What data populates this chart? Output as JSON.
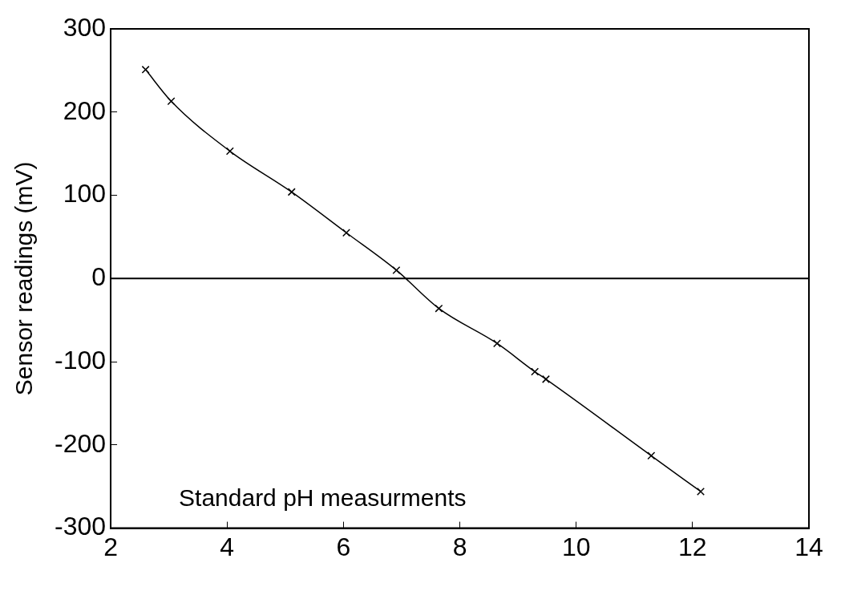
{
  "chart_data": {
    "type": "line",
    "xlabel": "Standard pH measurments",
    "ylabel": "Sensor readings (mV)",
    "x": [
      2.6,
      3.04,
      4.05,
      5.11,
      6.05,
      6.91,
      7.64,
      8.64,
      9.29,
      9.48,
      11.29,
      12.14
    ],
    "series": [
      {
        "color": "#000000",
        "values": [
          251,
          213,
          153,
          104,
          55,
          10,
          -36,
          -78,
          -112,
          -121,
          -213,
          -256
        ]
      }
    ],
    "xlim": [
      2,
      14
    ],
    "xticks": [
      2,
      4,
      6,
      8,
      10,
      12,
      14
    ],
    "ylim": [
      -300,
      300
    ],
    "yticks": [
      -300,
      -200,
      -100,
      0,
      100,
      200,
      300
    ],
    "ref_lines": [
      {
        "axis": "y",
        "value": 0,
        "color": "#000000"
      }
    ],
    "grid": false,
    "legend": false,
    "marker": "cross",
    "line_style": "solid"
  }
}
